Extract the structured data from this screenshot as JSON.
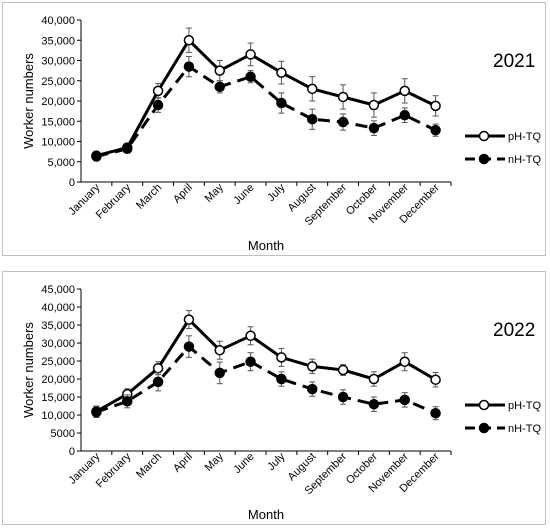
{
  "chart_data": [
    {
      "type": "line",
      "title": "2021",
      "xlabel": "Month",
      "ylabel": "Worker numbers",
      "ylim": [
        0,
        40000
      ],
      "yticks": [
        "0",
        "5,000",
        "10,000",
        "15,000",
        "20,000",
        "25,000",
        "30,000",
        "35,000",
        "40,000"
      ],
      "categories": [
        "January",
        "February",
        "March",
        "April",
        "May",
        "June",
        "July",
        "August",
        "September",
        "October",
        "November",
        "December"
      ],
      "legend": "right",
      "grid": false,
      "series": [
        {
          "name": "pH-TQ",
          "style": "solid-open-circle",
          "values": [
            6500,
            8500,
            22500,
            35000,
            27500,
            31500,
            27000,
            23000,
            21000,
            19000,
            22500,
            18800
          ],
          "errors": [
            800,
            1000,
            1800,
            3000,
            2500,
            2800,
            2800,
            3000,
            3000,
            3000,
            3000,
            2500
          ]
        },
        {
          "name": "nH-TQ",
          "style": "dashed-filled-circle",
          "values": [
            6300,
            8200,
            19000,
            28500,
            23500,
            26000,
            19500,
            15500,
            14800,
            13300,
            16500,
            12800
          ],
          "errors": [
            800,
            1000,
            1800,
            2500,
            1500,
            1500,
            2500,
            2500,
            2000,
            1800,
            1800,
            1500
          ]
        }
      ]
    },
    {
      "type": "line",
      "title": "2022",
      "xlabel": "Month",
      "ylabel": "Worker numbers",
      "ylim": [
        0,
        45000
      ],
      "yticks": [
        "0",
        "5000",
        "10,000",
        "15,000",
        "20,000",
        "25,000",
        "30,000",
        "35,000",
        "40,000",
        "45,000"
      ],
      "categories": [
        "January",
        "February",
        "March",
        "April",
        "May",
        "June",
        "July",
        "August",
        "September",
        "October",
        "November",
        "December"
      ],
      "legend": "right",
      "grid": false,
      "series": [
        {
          "name": "pH-TQ",
          "style": "solid-open-circle",
          "values": [
            11000,
            15800,
            23000,
            36500,
            28000,
            32000,
            26000,
            23500,
            22500,
            20000,
            24800,
            19800
          ],
          "errors": [
            1500,
            1500,
            1800,
            2500,
            2500,
            2500,
            2500,
            2000,
            1500,
            2000,
            2500,
            2000
          ]
        },
        {
          "name": "nH-TQ",
          "style": "dashed-filled-circle",
          "values": [
            10800,
            13800,
            19200,
            29000,
            21700,
            24800,
            20000,
            17200,
            15000,
            13000,
            14200,
            10500
          ],
          "errors": [
            1500,
            1800,
            2500,
            3000,
            3000,
            2500,
            2000,
            2000,
            2000,
            2000,
            2000,
            1800
          ]
        }
      ]
    }
  ],
  "colors": {
    "line": "#000000",
    "errorbar": "#555555",
    "border": "#bfbfbf"
  }
}
